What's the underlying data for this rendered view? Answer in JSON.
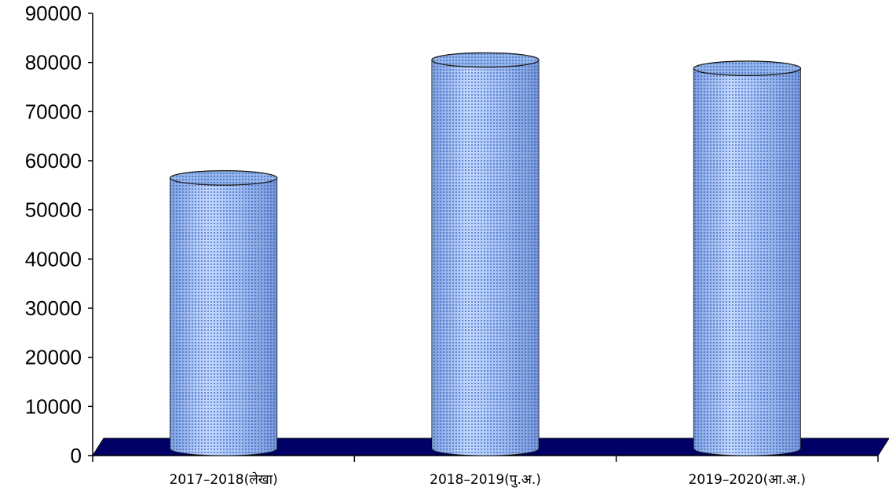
{
  "chart_data": {
    "type": "bar",
    "style": "3d-cylinder",
    "title": "",
    "xlabel": "",
    "ylabel": "",
    "categories": [
      "2017–2018(लेखा)",
      "2018–2019(पु.अ.)",
      "2019–2020(आ.अ.)"
    ],
    "values": [
      56500,
      80500,
      78800
    ],
    "ylim": [
      0,
      90000
    ],
    "yticks": [
      0,
      10000,
      20000,
      30000,
      40000,
      50000,
      60000,
      70000,
      80000,
      90000
    ],
    "grid": false,
    "legend": "none",
    "colors": {
      "bar_fill": "#5b8fe0",
      "bar_light": "#cfe0ff",
      "bar_dark": "#2a56b0",
      "floor": "#000066",
      "axis": "#000000"
    }
  }
}
